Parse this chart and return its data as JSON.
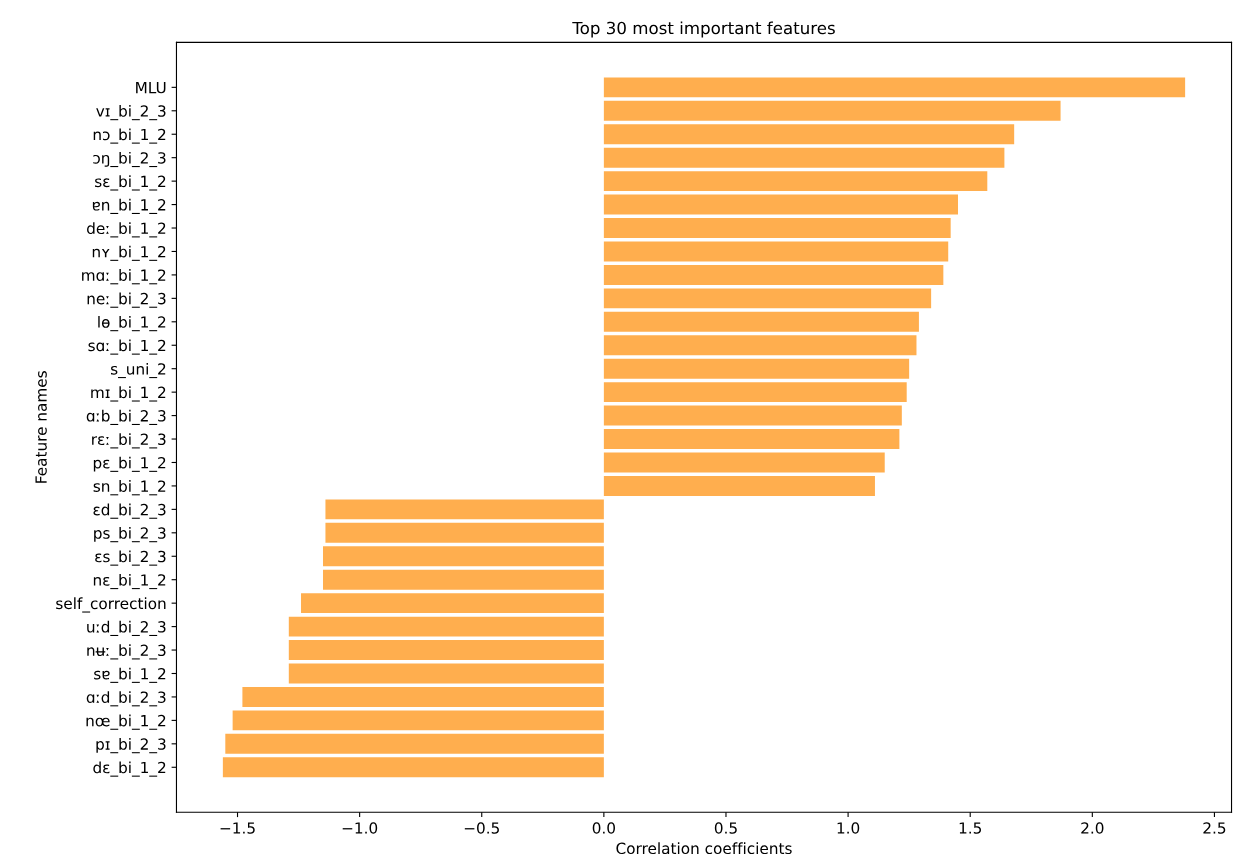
{
  "chart_data": {
    "type": "bar",
    "orientation": "horizontal",
    "title": "Top 30 most important features",
    "xlabel": "Correlation coefficients",
    "ylabel": "Feature names",
    "color": "#ffae4e",
    "categories": [
      "MLU",
      "vɪ_bi_2_3",
      "nɔ_bi_1_2",
      "ɔŋ_bi_2_3",
      "sɛ_bi_1_2",
      "ɐn_bi_1_2",
      "deː_bi_1_2",
      "nʏ_bi_1_2",
      "mɑː_bi_1_2",
      "neː_bi_2_3",
      "lɵ_bi_1_2",
      "sɑː_bi_1_2",
      "s_uni_2",
      "mɪ_bi_1_2",
      "ɑːb_bi_2_3",
      "rɛː_bi_2_3",
      "pɛ_bi_1_2",
      "sn_bi_1_2",
      "ɛd_bi_2_3",
      "ps_bi_2_3",
      "ɛs_bi_2_3",
      "nɛ_bi_1_2",
      "self_correction",
      "uːd_bi_2_3",
      "nʉː_bi_2_3",
      "sɐ_bi_1_2",
      "ɑːd_bi_2_3",
      "nœ_bi_1_2",
      "pɪ_bi_2_3",
      "dɛ_bi_1_2"
    ],
    "values": [
      2.38,
      1.87,
      1.68,
      1.64,
      1.57,
      1.45,
      1.42,
      1.41,
      1.39,
      1.34,
      1.29,
      1.28,
      1.25,
      1.24,
      1.22,
      1.21,
      1.15,
      1.11,
      -1.14,
      -1.14,
      -1.15,
      -1.15,
      -1.24,
      -1.29,
      -1.29,
      -1.29,
      -1.48,
      -1.52,
      -1.55,
      -1.56
    ],
    "xlim": [
      -1.75,
      2.57
    ],
    "xticks": [
      {
        "value": -1.5,
        "label": "−1.5"
      },
      {
        "value": -1.0,
        "label": "−1.0"
      },
      {
        "value": -0.5,
        "label": "−0.5"
      },
      {
        "value": 0.0,
        "label": "0.0"
      },
      {
        "value": 0.5,
        "label": "0.5"
      },
      {
        "value": 1.0,
        "label": "1.0"
      },
      {
        "value": 1.5,
        "label": "1.5"
      },
      {
        "value": 2.0,
        "label": "2.0"
      },
      {
        "value": 2.5,
        "label": "2.5"
      }
    ],
    "grid": false,
    "legend": false
  }
}
